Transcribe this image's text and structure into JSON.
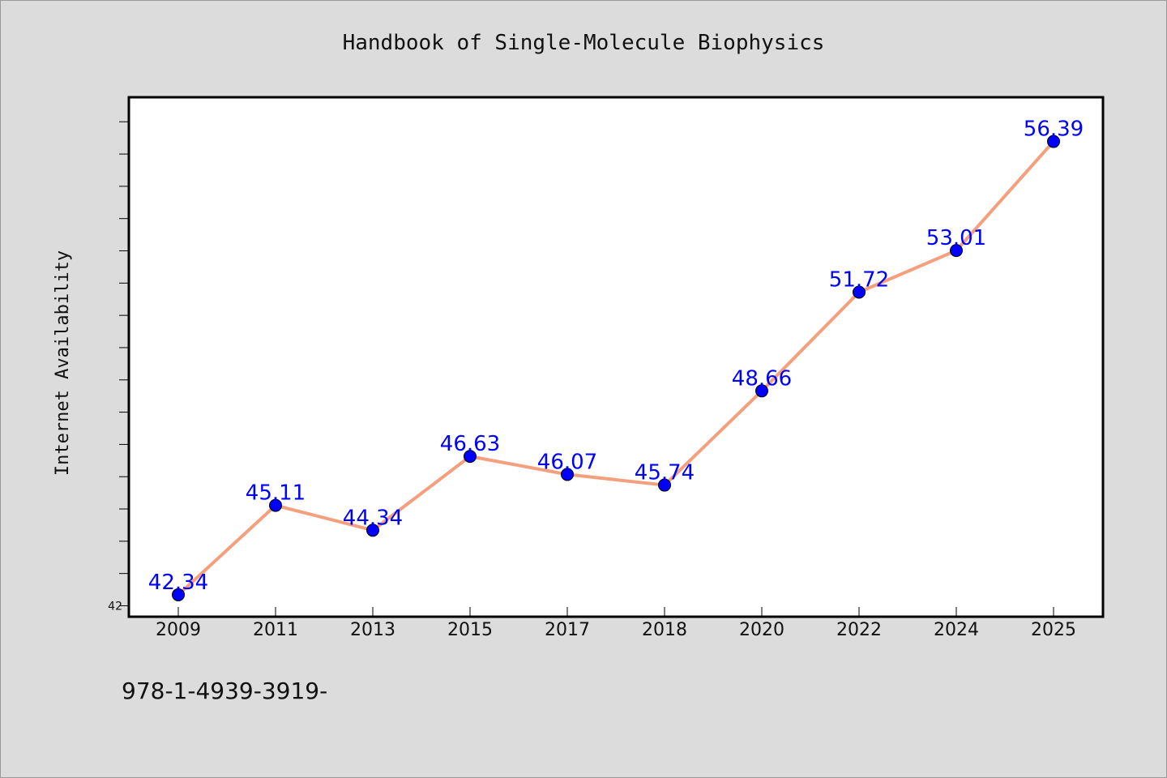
{
  "chart_data": {
    "type": "line",
    "title": "Handbook of Single-Molecule Biophysics",
    "xlabel": "",
    "ylabel": "Internet Availability",
    "categories": [
      "2009",
      "2011",
      "2013",
      "2015",
      "2017",
      "2018",
      "2020",
      "2022",
      "2024",
      "2025"
    ],
    "series": [
      {
        "values": [
          42.34,
          45.11,
          44.34,
          46.63,
          46.07,
          45.74,
          48.66,
          51.72,
          53.01,
          56.39
        ],
        "labels": [
          "42.34",
          "45.11",
          "44.34",
          "46.63",
          "46.07",
          "45.74",
          "48.66",
          "51.72",
          "53.01",
          "56.39"
        ]
      }
    ],
    "ylim": [
      41.66,
      57.76
    ],
    "ytick_labels": [
      {
        "value": 42,
        "label": "42"
      }
    ],
    "minor_tick_step": 1,
    "grid": false,
    "line_color": "#f4a07e",
    "marker_color": "#0000ff",
    "label_color": "#0000ff",
    "background_color": "#dcdcdc",
    "plot_background": "#ffffff"
  },
  "footer": {
    "text": "978-1-4939-3919-"
  }
}
